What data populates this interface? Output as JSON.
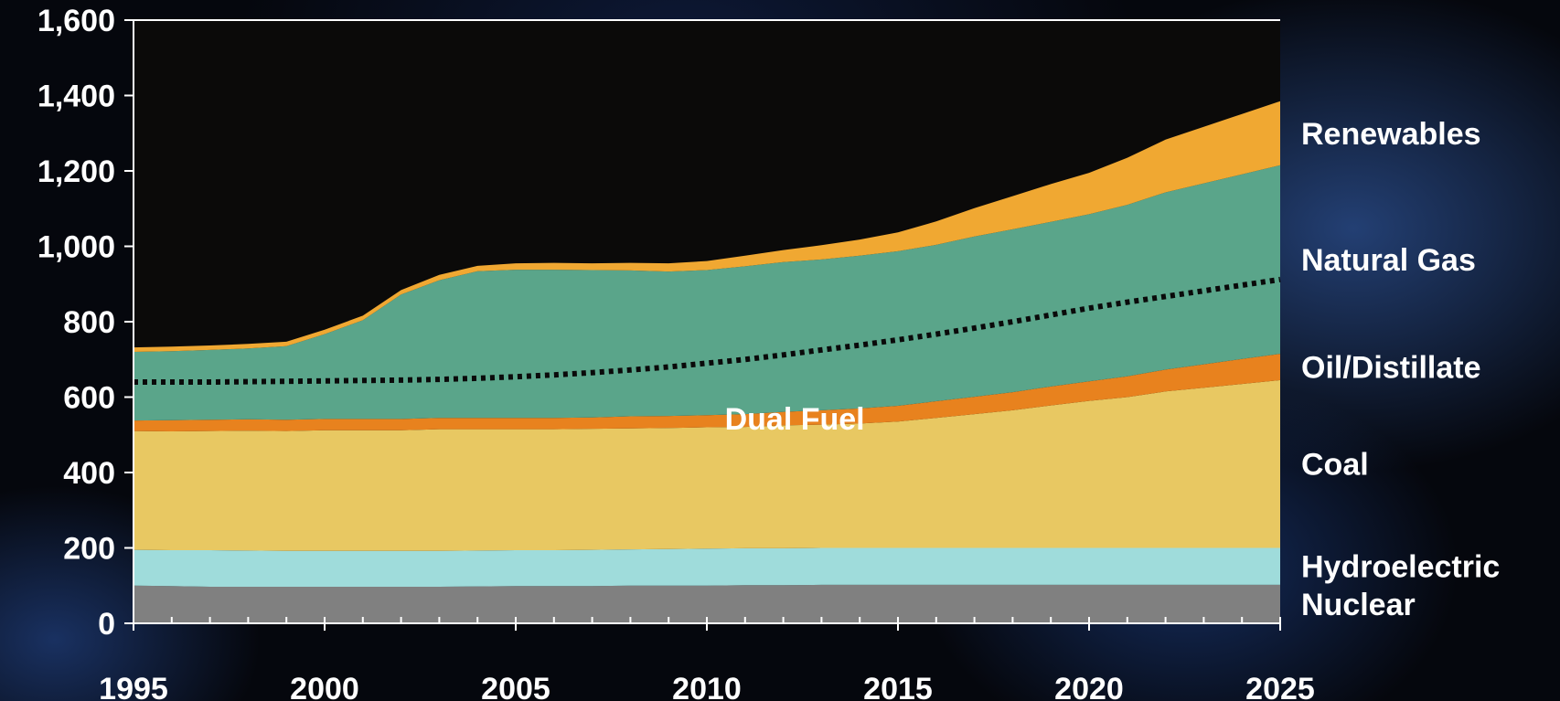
{
  "chart_data": {
    "type": "area",
    "title": "",
    "xlabel": "",
    "ylabel": "",
    "xlim": [
      1995,
      2025
    ],
    "ylim": [
      0,
      1600
    ],
    "yticks": [
      0,
      200,
      400,
      600,
      800,
      1000,
      1200,
      1400,
      1600
    ],
    "ytick_labels": [
      "0",
      "200",
      "400",
      "600",
      "800",
      "1,000",
      "1,200",
      "1,400",
      "1,600"
    ],
    "xticks": [
      1995,
      2000,
      2005,
      2010,
      2015,
      2020,
      2025
    ],
    "xtick_labels": [
      "1995",
      "2000",
      "2005",
      "2010",
      "2015",
      "2020",
      "2025"
    ],
    "x": [
      1995,
      1996,
      1997,
      1998,
      1999,
      2000,
      2001,
      2002,
      2003,
      2004,
      2005,
      2006,
      2007,
      2008,
      2009,
      2010,
      2011,
      2012,
      2013,
      2014,
      2015,
      2016,
      2017,
      2018,
      2019,
      2020,
      2021,
      2022,
      2023,
      2024,
      2025
    ],
    "stacking": "stacked",
    "series": [
      {
        "name": "Nuclear",
        "color": "#808080",
        "values": [
          100,
          99,
          97,
          97,
          97,
          97,
          97,
          97,
          97,
          98,
          99,
          99,
          99,
          100,
          100,
          100,
          101,
          101,
          102,
          102,
          102,
          102,
          102,
          102,
          102,
          102,
          102,
          102,
          102,
          102,
          102
        ]
      },
      {
        "name": "Hydroelectric",
        "color": "#9fdcdb",
        "values": [
          95,
          95,
          97,
          96,
          95,
          95,
          95,
          95,
          95,
          95,
          95,
          95,
          96,
          96,
          97,
          98,
          98,
          98,
          98,
          98,
          98,
          98,
          98,
          98,
          98,
          98,
          98,
          98,
          98,
          98,
          98
        ]
      },
      {
        "name": "Coal",
        "color": "#e8c862",
        "values": [
          315,
          315,
          316,
          318,
          318,
          320,
          320,
          320,
          323,
          322,
          321,
          321,
          321,
          321,
          321,
          322,
          322,
          326,
          327,
          330,
          335,
          345,
          355,
          365,
          378,
          390,
          400,
          415,
          425,
          435,
          445
        ]
      },
      {
        "name": "Oil/Distillate",
        "color": "#e8821e",
        "values": [
          28,
          30,
          30,
          30,
          30,
          30,
          30,
          30,
          30,
          30,
          30,
          30,
          30,
          32,
          32,
          32,
          34,
          36,
          38,
          40,
          42,
          44,
          46,
          48,
          50,
          52,
          55,
          58,
          62,
          66,
          70
        ]
      },
      {
        "name": "Natural Gas",
        "color": "#5aa58a",
        "values": [
          182,
          183,
          185,
          188,
          195,
          225,
          262,
          330,
          365,
          389,
          393,
          393,
          391,
          387,
          383,
          385,
          392,
          397,
          400,
          405,
          410,
          415,
          425,
          432,
          437,
          443,
          455,
          470,
          480,
          490,
          500
        ]
      },
      {
        "name": "Renewables",
        "color": "#f0a832",
        "values": [
          12,
          12,
          12,
          12,
          12,
          12,
          12,
          12,
          14,
          14,
          17,
          18,
          18,
          20,
          22,
          24,
          28,
          32,
          38,
          43,
          50,
          62,
          75,
          88,
          100,
          110,
          125,
          140,
          150,
          160,
          170
        ]
      }
    ],
    "overlays": [
      {
        "name": "Dual Fuel",
        "style": "dotted",
        "color": "#0a0a0a",
        "values": [
          640,
          640,
          640,
          641,
          642,
          643,
          644,
          645,
          647,
          650,
          654,
          659,
          665,
          672,
          680,
          690,
          700,
          712,
          725,
          738,
          752,
          767,
          783,
          800,
          818,
          836,
          852,
          867,
          882,
          897,
          912
        ]
      }
    ],
    "annotations": [
      {
        "text": "Dual Fuel"
      }
    ],
    "legend": "right-side series labels",
    "grid": false,
    "colors": {
      "axis": "#ffffff",
      "text": "#ffffff",
      "plot_background": "#0b0a09"
    }
  }
}
